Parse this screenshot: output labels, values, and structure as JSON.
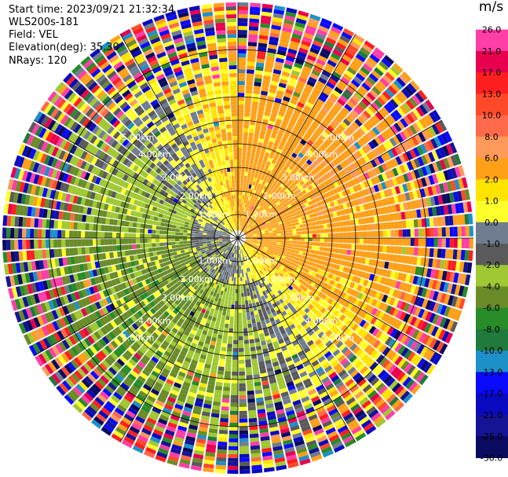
{
  "header": {
    "start_time": "Start time: 2023/09/21 21:32:34",
    "instrument": "WLS200s-181",
    "field": "Field: VEL",
    "elevation": "Elevation(deg): 35.30",
    "nrays": "NRays: 120"
  },
  "chart_data": {
    "type": "heatmap",
    "title": "",
    "units": "m/s",
    "range_ring_labels": [
      "1.00km",
      "2.00km",
      "3.00km",
      "4.00km",
      "5.00km"
    ],
    "range_rings_km": [
      1,
      2,
      3,
      4,
      5
    ],
    "max_range_km": 5.0,
    "n_rays": 120,
    "colorbar": {
      "ticks": [
        "26.0",
        "21.0",
        "17.0",
        "13.0",
        "10.0",
        "8.0",
        "6.0",
        "2.0",
        "1.0",
        "0.0",
        "-1.0",
        "-2.0",
        "-4.0",
        "-6.0",
        "-8.0",
        "-10.0",
        "-13.0",
        "-17.0",
        "-21.0",
        "-26.0",
        "-30.0"
      ],
      "colors": [
        "#ff3ea8",
        "#e8004e",
        "#ff1f1f",
        "#ff4a2a",
        "#ff6a4a",
        "#ff9a5a",
        "#ffa018",
        "#ffe400",
        "#ffff2a",
        "#707d90",
        "#5a5a5a",
        "#a0c832",
        "#6a8c28",
        "#288c28",
        "#1f7a3c",
        "#1e90c8",
        "#0a0aff",
        "#0a0ac0",
        "#141494",
        "#0a0a60"
      ]
    },
    "velocity_field": {
      "description_axes": "azimuth (deg clockwise from north) vs range (km)",
      "near_field": [
        {
          "azimuth_range": [
            300,
            360
          ],
          "range_km": [
            0.0,
            1.0
          ],
          "velocity_ms": 1.5
        },
        {
          "azimuth_range": [
            0,
            60
          ],
          "range_km": [
            0.0,
            1.0
          ],
          "velocity_ms": 1.5
        },
        {
          "azimuth_range": [
            60,
            160
          ],
          "range_km": [
            0.5,
            2.0
          ],
          "velocity_ms": 5.0
        },
        {
          "azimuth_range": [
            180,
            300
          ],
          "range_km": [
            0.0,
            2.5
          ],
          "velocity_ms": -3.0
        }
      ],
      "far_field_noise": {
        "range_km": [
          3.5,
          5.0
        ],
        "velocity_ms": [
          -30.0,
          26.0
        ]
      }
    }
  }
}
